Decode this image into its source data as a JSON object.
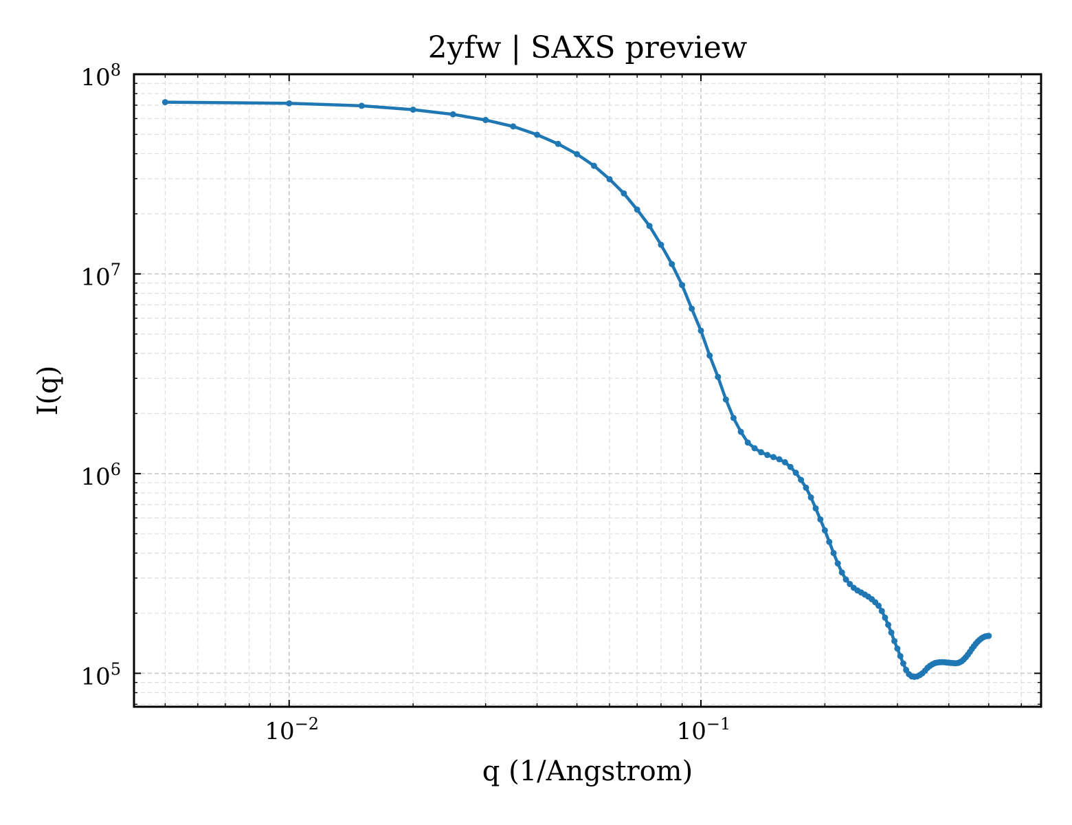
{
  "chart_data": {
    "type": "line",
    "title": "2yfw | SAXS preview",
    "xlabel": "q (1/Angstrom)",
    "ylabel": "I(q)",
    "xscale": "log",
    "yscale": "log",
    "xlim": [
      0.0042,
      0.67
    ],
    "ylim": [
      68000,
      100000000
    ],
    "grid": true,
    "legend": "none",
    "color": "#1f77b4",
    "x_ticks": [
      {
        "base": "10",
        "exp": "−2",
        "value": 0.01
      },
      {
        "base": "10",
        "exp": "−1",
        "value": 0.1
      }
    ],
    "y_ticks": [
      {
        "base": "10",
        "exp": "5",
        "value": 100000
      },
      {
        "base": "10",
        "exp": "6",
        "value": 1000000
      },
      {
        "base": "10",
        "exp": "7",
        "value": 10000000
      },
      {
        "base": "10",
        "exp": "8",
        "value": 100000000
      }
    ],
    "series": [
      {
        "x": [
          0.005,
          0.01,
          0.015,
          0.02,
          0.025,
          0.03,
          0.035,
          0.04,
          0.045,
          0.05,
          0.055,
          0.06,
          0.065,
          0.07,
          0.075,
          0.08,
          0.085,
          0.09,
          0.095,
          0.1,
          0.105,
          0.11,
          0.115,
          0.12,
          0.125,
          0.13,
          0.135,
          0.14,
          0.145,
          0.15,
          0.155,
          0.16,
          0.165,
          0.17,
          0.175,
          0.18,
          0.185,
          0.19,
          0.195,
          0.2,
          0.205,
          0.21,
          0.215,
          0.22,
          0.225,
          0.23,
          0.235,
          0.24,
          0.245,
          0.25,
          0.255,
          0.26,
          0.265,
          0.27,
          0.275,
          0.28,
          0.285,
          0.29,
          0.295,
          0.3,
          0.305,
          0.31,
          0.315,
          0.32,
          0.325,
          0.33,
          0.335,
          0.34,
          0.345,
          0.35,
          0.355,
          0.36,
          0.365,
          0.37,
          0.375,
          0.38,
          0.385,
          0.39,
          0.395,
          0.4,
          0.405,
          0.41,
          0.415,
          0.42,
          0.425,
          0.43,
          0.435,
          0.44,
          0.445,
          0.45,
          0.455,
          0.46,
          0.465,
          0.47,
          0.475,
          0.48,
          0.485,
          0.49,
          0.495,
          0.5
        ],
        "y": [
          72500000,
          71500000,
          69500000,
          66500000,
          63000000,
          59000000,
          54800000,
          49800000,
          44800000,
          39800000,
          34800000,
          29800000,
          25300000,
          21000000,
          17400000,
          14000000,
          11200000,
          8800000,
          6700000,
          5200000,
          3900000,
          3050000,
          2350000,
          1900000,
          1620000,
          1430000,
          1340000,
          1280000,
          1240000,
          1210000,
          1180000,
          1140000,
          1080000,
          1010000,
          930000,
          850000,
          760000,
          670000,
          590000,
          520000,
          455000,
          400000,
          355000,
          320000,
          295000,
          280000,
          268000,
          260000,
          254000,
          248000,
          242000,
          235000,
          227000,
          218000,
          205000,
          190000,
          175000,
          160000,
          145000,
          133000,
          122000,
          112000,
          104000,
          99000,
          96500,
          96000,
          96500,
          98000,
          100000,
          103000,
          106500,
          109000,
          111000,
          112500,
          113200,
          113600,
          113700,
          113600,
          113300,
          113000,
          112700,
          112500,
          112300,
          112600,
          113500,
          115000,
          117500,
          120500,
          124000,
          128000,
          132500,
          136500,
          140500,
          144000,
          147000,
          149500,
          151500,
          153000,
          153500,
          154000
        ]
      }
    ]
  }
}
